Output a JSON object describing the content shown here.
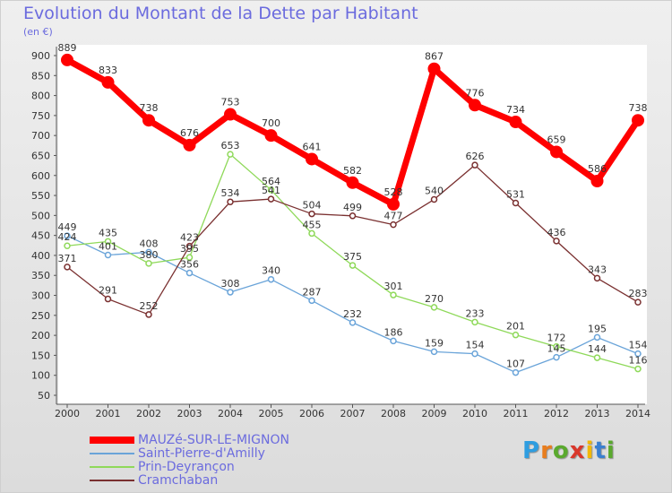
{
  "header": {
    "title": "Evolution du Montant de la Dette par Habitant",
    "unit": "(en €)"
  },
  "logo": {
    "text": "Proxiti",
    "letter_colors": [
      "#2e9de0",
      "#e87d1e",
      "#5aa92e",
      "#d9372b",
      "#f2b705",
      "#3a7fd0",
      "#5aa92e"
    ]
  },
  "chart_data": {
    "type": "line",
    "title": "Evolution du Montant de la Dette par Habitant",
    "ylabel": "(en €)",
    "xlabel": "",
    "x": [
      "2000",
      "2001",
      "2002",
      "2003",
      "2004",
      "2005",
      "2006",
      "2007",
      "2008",
      "2009",
      "2010",
      "2011",
      "2012",
      "2013",
      "2014"
    ],
    "ylim": [
      50,
      900
    ],
    "yticks": [
      50,
      100,
      150,
      200,
      250,
      300,
      350,
      400,
      450,
      500,
      550,
      600,
      650,
      700,
      750,
      800,
      850,
      900
    ],
    "grid": false,
    "legend_position": "bottom-left",
    "series": [
      {
        "name": "MAUZé-SUR-LE-MIGNON",
        "color": "#ff0000",
        "width": 7,
        "values": [
          889,
          833,
          738,
          676,
          753,
          700,
          641,
          582,
          528,
          867,
          776,
          734,
          659,
          586,
          738
        ]
      },
      {
        "name": "Saint-Pierre-d'Amilly",
        "color": "#6aa4d9",
        "width": 1.3,
        "values": [
          449,
          401,
          408,
          356,
          308,
          340,
          287,
          232,
          186,
          159,
          154,
          107,
          145,
          195,
          154
        ]
      },
      {
        "name": "Prin-Deyrançon",
        "color": "#8fd95a",
        "width": 1.3,
        "values": [
          424,
          435,
          380,
          395,
          653,
          564,
          455,
          375,
          301,
          270,
          233,
          201,
          172,
          144,
          116
        ]
      },
      {
        "name": "Cramchaban",
        "color": "#7a3030",
        "width": 1.3,
        "values": [
          371,
          291,
          252,
          423,
          534,
          541,
          504,
          499,
          477,
          540,
          626,
          531,
          436,
          343,
          283
        ]
      }
    ]
  }
}
